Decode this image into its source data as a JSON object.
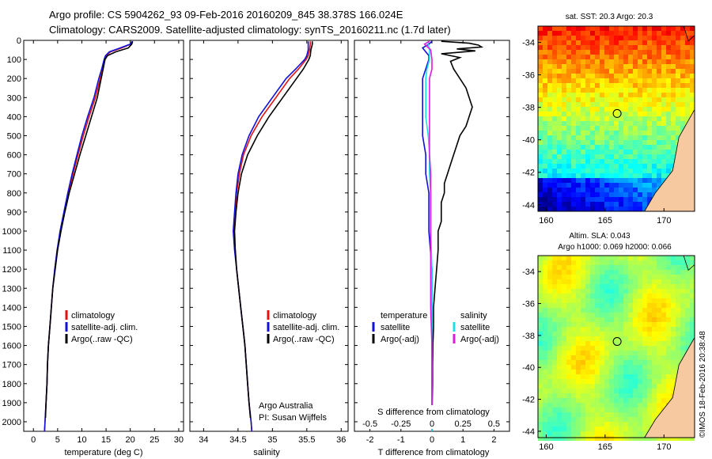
{
  "header": {
    "line1": "Argo profile: CS 5904262_93 09-Feb-2016 20160209_845 38.378S 166.024E",
    "line2": "Climatology: CARS2009. Satellite-adjusted climatology: synTS_20160211.nc (1.7d later)"
  },
  "colors": {
    "climatology": "#e41010",
    "satellite": "#1010d8",
    "argo": "#000000",
    "sat_salinity": "#18e0e8",
    "argo_salinity": "#e018e0"
  },
  "legends": {
    "temp_panel": [
      "climatology",
      "satellite-adj. clim.",
      "Argo(..raw -QC)"
    ],
    "sal_panel": [
      "climatology",
      "satellite-adj. clim.",
      "Argo(..raw -QC)"
    ],
    "diff_temperature": {
      "title": "temperature",
      "items": [
        "satellite",
        "Argo(-adj)"
      ]
    },
    "diff_salinity": {
      "title": "salinity",
      "items": [
        "satellite",
        "Argo(-adj)"
      ]
    }
  },
  "annotations": {
    "argo_australia": "Argo Australia",
    "pi": "PI: Susan Wijffels",
    "s_diff_label": "S difference from climatology",
    "copyright": "©IMOS 18-Feb-2016 20:38:48"
  },
  "maps": {
    "sst": {
      "title": "sat. SST: 20.3 Argo: 20.3",
      "palette": "jet"
    },
    "sla": {
      "title_line1": "Altim. SLA: 0.043",
      "title_line2": "Argo h1000: 0.069 h2000: 0.066",
      "palette": "jet"
    },
    "lat_ticks": [
      -34,
      -36,
      -38,
      -40,
      -42,
      -44
    ],
    "lat_tick_labels": [
      "-34",
      "-36",
      "-38",
      "-40",
      "-42",
      "-44"
    ],
    "lon_ticks": [
      160,
      165,
      170
    ],
    "lon_tick_labels": [
      "160",
      "165",
      "170"
    ],
    "profile_location": {
      "lon": 166.024,
      "lat": -38.378
    }
  },
  "chart_data": [
    {
      "type": "line",
      "panel": "temperature",
      "xlabel": "temperature (deg C)",
      "ylabel": "",
      "xlim": [
        -2,
        31
      ],
      "ylim": [
        2050,
        0
      ],
      "xticks": [
        0,
        5,
        10,
        15,
        20,
        25,
        30
      ],
      "yticks": [
        0,
        100,
        200,
        300,
        400,
        500,
        600,
        700,
        800,
        900,
        1000,
        1100,
        1200,
        1300,
        1400,
        1500,
        1600,
        1700,
        1800,
        1900,
        2000
      ],
      "grid": false,
      "legend": "lower-right",
      "series": [
        {
          "name": "climatology",
          "depth": [
            5,
            20,
            40,
            60,
            80,
            100,
            150,
            200,
            300,
            400,
            500,
            600,
            700,
            800,
            900,
            1000,
            1100,
            1200,
            1300,
            1400,
            1500,
            1600,
            1700,
            1800,
            1900,
            2000,
            2050
          ],
          "values": [
            20.4,
            20.1,
            18.2,
            15.9,
            15.0,
            14.7,
            14.3,
            13.8,
            12.8,
            11.5,
            10.3,
            9.2,
            8.2,
            7.2,
            6.4,
            5.6,
            4.9,
            4.4,
            4.0,
            3.7,
            3.4,
            3.1,
            2.9,
            2.8,
            2.6,
            2.4,
            2.3
          ]
        },
        {
          "name": "satellite-adj. clim.",
          "depth": [
            5,
            20,
            40,
            60,
            80,
            100,
            150,
            200,
            300,
            400,
            500,
            600,
            700,
            800,
            900,
            1000,
            1100,
            1200,
            1300,
            1400,
            1500,
            1600,
            1700,
            1800,
            1900,
            2000,
            2050
          ],
          "values": [
            20.4,
            20.0,
            17.9,
            15.7,
            14.9,
            14.6,
            14.1,
            13.5,
            12.5,
            11.2,
            10.0,
            9.0,
            8.0,
            7.1,
            6.3,
            5.5,
            4.9,
            4.4,
            4.0,
            3.7,
            3.4,
            3.1,
            2.9,
            2.8,
            2.6,
            2.4,
            2.3
          ]
        },
        {
          "name": "Argo(..raw -QC)",
          "depth": [
            5,
            20,
            40,
            60,
            80,
            100,
            150,
            200,
            300,
            400,
            500,
            600,
            700,
            800,
            900,
            1000,
            1100,
            1200,
            1300,
            1400,
            1500,
            1600,
            1700,
            1800,
            1900,
            1980
          ],
          "values": [
            20.5,
            20.3,
            19.6,
            17.0,
            15.3,
            14.8,
            14.4,
            14.0,
            13.2,
            12.0,
            10.8,
            9.6,
            8.5,
            7.4,
            6.5,
            5.7,
            5.0,
            4.5,
            4.0,
            3.7,
            3.4,
            3.1,
            2.9,
            2.8,
            2.6,
            2.5
          ]
        }
      ]
    },
    {
      "type": "line",
      "panel": "salinity",
      "xlabel": "salinity",
      "ylabel": "",
      "xlim": [
        33.8,
        36.1
      ],
      "ylim": [
        2050,
        0
      ],
      "xticks": [
        34,
        34.5,
        35,
        35.5,
        36
      ],
      "grid": false,
      "legend": "lower-right",
      "series": [
        {
          "name": "climatology",
          "depth": [
            5,
            20,
            50,
            80,
            100,
            150,
            200,
            300,
            400,
            500,
            600,
            700,
            800,
            900,
            1000,
            1100,
            1200,
            1300,
            1400,
            1500,
            1600,
            1700,
            1800,
            1900,
            2000,
            2050
          ],
          "values": [
            35.55,
            35.55,
            35.54,
            35.52,
            35.49,
            35.38,
            35.25,
            35.05,
            34.85,
            34.69,
            34.58,
            34.52,
            34.48,
            34.46,
            34.44,
            34.46,
            34.48,
            34.51,
            34.54,
            34.57,
            34.6,
            34.62,
            34.64,
            34.66,
            34.69,
            34.7
          ]
        },
        {
          "name": "satellite-adj. clim.",
          "depth": [
            5,
            20,
            50,
            80,
            100,
            150,
            200,
            300,
            400,
            500,
            600,
            700,
            800,
            900,
            1000,
            1100,
            1200,
            1300,
            1400,
            1500,
            1600,
            1700,
            1800,
            1900,
            2000,
            2050
          ],
          "values": [
            35.52,
            35.52,
            35.52,
            35.5,
            35.47,
            35.34,
            35.2,
            35.0,
            34.8,
            34.66,
            34.56,
            34.5,
            34.47,
            34.45,
            34.43,
            34.45,
            34.48,
            34.51,
            34.54,
            34.57,
            34.6,
            34.62,
            34.64,
            34.66,
            34.69,
            34.7
          ]
        },
        {
          "name": "Argo(..raw -QC)",
          "depth": [
            5,
            20,
            50,
            80,
            100,
            150,
            200,
            300,
            400,
            500,
            600,
            700,
            800,
            900,
            1000,
            1100,
            1200,
            1300,
            1400,
            1500,
            1600,
            1700,
            1800,
            1900,
            1980
          ],
          "values": [
            35.58,
            35.58,
            35.56,
            35.55,
            35.53,
            35.45,
            35.35,
            35.15,
            34.95,
            34.78,
            34.64,
            34.55,
            34.5,
            34.47,
            34.45,
            34.46,
            34.48,
            34.51,
            34.54,
            34.57,
            34.6,
            34.62,
            34.64,
            34.66,
            34.68
          ]
        }
      ]
    },
    {
      "type": "line",
      "panel": "difference",
      "xlabel": "T difference from climatology",
      "ylabel": "",
      "xlim": [
        -2.5,
        2.5
      ],
      "ylim": [
        2050,
        0
      ],
      "xticks": [
        -2,
        -1,
        0,
        1,
        2
      ],
      "xticks_top_salinity": [
        -0.5,
        -0.25,
        0,
        0.25,
        0.5
      ],
      "grid": false,
      "legend": "lower",
      "series": [
        {
          "name": "temperature satellite",
          "depth": [
            5,
            20,
            40,
            60,
            80,
            100,
            150,
            200,
            300,
            400,
            500,
            600,
            700,
            800,
            900,
            1000,
            1200,
            1400,
            1600,
            1800,
            2000,
            2050
          ],
          "values": [
            0.0,
            -0.1,
            -0.3,
            -0.2,
            -0.1,
            -0.1,
            -0.2,
            -0.3,
            -0.3,
            -0.3,
            -0.3,
            -0.2,
            -0.2,
            -0.1,
            -0.1,
            -0.1,
            0.0,
            0.0,
            0.0,
            0.0,
            0.0,
            0.0
          ]
        },
        {
          "name": "temperature Argo(-adj)",
          "depth": [
            5,
            15,
            25,
            35,
            45,
            55,
            70,
            90,
            110,
            150,
            200,
            250,
            300,
            350,
            400,
            450,
            500,
            550,
            600,
            650,
            700,
            750,
            800,
            850,
            900,
            950,
            1000,
            1100,
            1200,
            1300,
            1400,
            1500,
            1600,
            1700,
            1800,
            1900,
            1980
          ],
          "values": [
            0.3,
            1.2,
            1.5,
            1.6,
            0.8,
            1.4,
            0.3,
            0.9,
            0.6,
            0.7,
            0.9,
            1.1,
            1.2,
            1.3,
            1.2,
            1.1,
            0.9,
            0.8,
            0.7,
            0.6,
            0.5,
            0.4,
            0.4,
            0.3,
            0.3,
            0.3,
            0.2,
            0.2,
            0.15,
            0.1,
            0.05,
            0.05,
            0.03,
            0.02,
            0.02,
            0.01,
            0.0
          ]
        },
        {
          "name": "salinity satellite",
          "depth": [
            5,
            20,
            50,
            100,
            150,
            200,
            300,
            400,
            500,
            600,
            700,
            800,
            1000,
            1200,
            1400,
            1600,
            1800,
            2000,
            2050
          ],
          "values": [
            -0.03,
            -0.03,
            -0.02,
            -0.02,
            -0.04,
            -0.05,
            -0.05,
            -0.05,
            -0.03,
            -0.02,
            -0.02,
            -0.01,
            -0.01,
            0.0,
            0.0,
            0.0,
            0.0,
            0.0,
            0.0
          ]
        },
        {
          "name": "salinity Argo(-adj)",
          "depth": [
            5,
            20,
            50,
            100,
            150,
            200,
            300,
            400,
            500,
            600,
            700,
            800,
            1000,
            1200,
            1400,
            1600,
            1800,
            1980
          ],
          "values": [
            -0.02,
            -0.06,
            -0.01,
            0.0,
            0.0,
            -0.02,
            -0.02,
            -0.02,
            -0.02,
            -0.02,
            -0.01,
            -0.01,
            -0.01,
            -0.01,
            -0.01,
            0.0,
            0.0,
            0.0
          ]
        }
      ]
    }
  ]
}
